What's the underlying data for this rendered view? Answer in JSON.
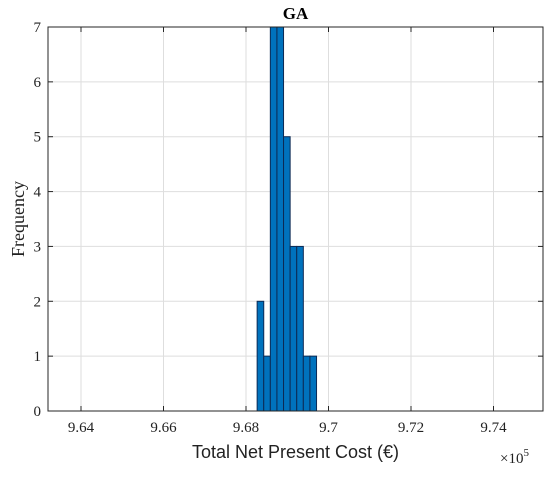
{
  "chart_data": {
    "type": "bar",
    "title": "GA",
    "xlabel": "Total Net Present Cost (€)",
    "ylabel": "Frequency",
    "x_exponent_base": "×10",
    "x_exponent_power": "5",
    "xlim": [
      9.632,
      9.752
    ],
    "ylim": [
      0,
      7
    ],
    "xticks": [
      9.64,
      9.66,
      9.68,
      9.7,
      9.72,
      9.74
    ],
    "xtick_labels": [
      "9.64",
      "9.66",
      "9.68",
      "9.7",
      "9.72",
      "9.74"
    ],
    "yticks": [
      0,
      1,
      2,
      3,
      4,
      5,
      6,
      7
    ],
    "ytick_labels": [
      "0",
      "1",
      "2",
      "3",
      "4",
      "5",
      "6",
      "7"
    ],
    "grid": true,
    "bin_width": 0.0016,
    "bins": [
      {
        "x": 9.6835,
        "value": 2
      },
      {
        "x": 9.6851,
        "value": 1
      },
      {
        "x": 9.6867,
        "value": 7
      },
      {
        "x": 9.6883,
        "value": 7
      },
      {
        "x": 9.6899,
        "value": 5
      },
      {
        "x": 9.6915,
        "value": 3
      },
      {
        "x": 9.6931,
        "value": 3
      },
      {
        "x": 9.6947,
        "value": 1
      },
      {
        "x": 9.6963,
        "value": 1
      }
    ],
    "bar_color": "#0072BD",
    "bar_edge_color": "#0D2A55"
  }
}
